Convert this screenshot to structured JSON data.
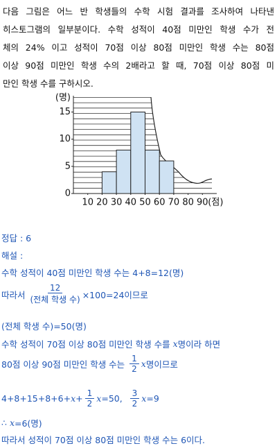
{
  "problem": {
    "lines": [
      "다음 그림은 어느 반 학생들의 수학 시험 결과를 조사하여 나타낸",
      "히스토그램의 일부분이다. 수학 성적이 40점 미만인 학생 수가 전",
      "체의 24% 이고 성적이 70점 이상 80점 미만인 학생 수는 80점",
      "이상 90점 미만인 학생 수의 2배라고 할 때, 70점 이상 80점 미",
      "만인 학생 수를 구하시오."
    ]
  },
  "chart_data": {
    "type": "histogram",
    "bins": [
      20,
      30,
      40,
      50,
      60,
      70
    ],
    "values": [
      4,
      8,
      15,
      8,
      6
    ],
    "color": "#cfe2f3",
    "xlim": [
      0,
      100
    ],
    "xticks": [
      10,
      20,
      30,
      40,
      50,
      60,
      70,
      80,
      90
    ],
    "ylim": [
      0,
      18
    ],
    "yticks": [
      0,
      5,
      10,
      15
    ],
    "x_label": "(점)",
    "y_label": "(명)"
  },
  "solution": {
    "answer": "정답 : 6",
    "label": "해설 :",
    "lines": [
      [
        "수학 성적이 40점 미만인 학생 수는 4+8=12(명)"
      ],
      [
        "따라서 ",
        {
          "num": "12",
          "den": "(전체 학생 수)"
        },
        "×100=24이므로"
      ],
      [
        "(전체 학생 수)=50(명)"
      ],
      [
        "수학 성적이 70점 이상 80점 미만인 학생 수를 ",
        {
          "var": "x"
        },
        "명이라 하면"
      ],
      [
        "80점 이상 90점 미만인 학생 수는 ",
        {
          "num": "1",
          "den": "2"
        },
        {
          "var": "x"
        },
        "명이므로"
      ],
      [
        "4+8+15+8+6+",
        {
          "var": "x"
        },
        "+",
        {
          "num": "1",
          "den": "2"
        },
        {
          "var": "x"
        },
        "=50,  ",
        {
          "num": "3",
          "den": "2"
        },
        {
          "var": "x"
        },
        "=9"
      ],
      [
        "∴ ",
        {
          "var": "x"
        },
        "=6(명)"
      ],
      [
        "따라서 성적이 70점 이상 80점 미만인 학생 수는 6이다."
      ]
    ]
  }
}
